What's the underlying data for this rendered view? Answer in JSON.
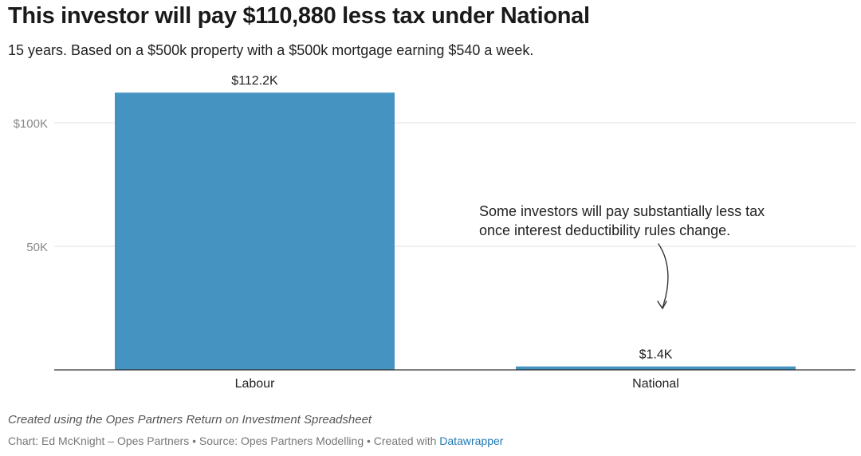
{
  "title": "This investor will pay $110,880 less tax under National",
  "subtitle": "15 years. Based on a $500k property with a $500k mortgage earning $540 a week.",
  "chart_data": {
    "type": "bar",
    "categories": [
      "Labour",
      "National"
    ],
    "values": [
      112.2,
      1.4
    ],
    "value_labels": [
      "$112.2K",
      "$1.4K"
    ],
    "unit": "thousand dollars",
    "ylim": [
      0,
      120
    ],
    "yticks": [
      {
        "value": 100,
        "label": "$100K"
      },
      {
        "value": 50,
        "label": "50K"
      }
    ],
    "grid": true,
    "bar_color": "#4593c1",
    "annotation": {
      "lines": [
        "Some investors will pay substantially less tax",
        "once interest deductibility rules change."
      ],
      "target_category": "National"
    }
  },
  "footer": {
    "notes": "Created using the Opes Partners Return on Investment Spreadsheet",
    "byline": "Chart: Ed McKnight – Opes Partners • Source: Opes Partners Modelling • Created with ",
    "byline_link": "Datawrapper"
  }
}
